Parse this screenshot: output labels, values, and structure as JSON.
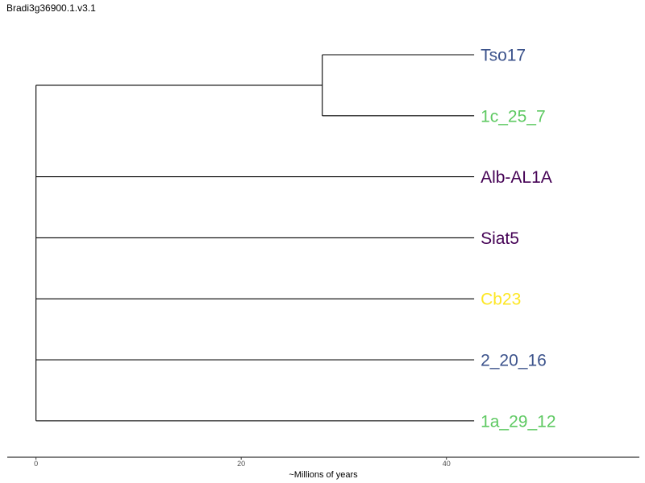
{
  "title": "Bradi3g36900.1.v3.1",
  "tree": {
    "leaves": [
      {
        "label": "Tso17",
        "color": "#3b528b"
      },
      {
        "label": "1c_25_7",
        "color": "#5ec962"
      },
      {
        "label": "Alb-AL1A",
        "color": "#440154"
      },
      {
        "label": "Siat5",
        "color": "#440154"
      },
      {
        "label": "Cb23",
        "color": "#fde725"
      },
      {
        "label": "2_20_16",
        "color": "#3b528b"
      },
      {
        "label": "1a_29_12",
        "color": "#5ec962"
      }
    ],
    "root_age": 0,
    "tip_age": 42.7,
    "internal_nodes": [
      {
        "name": "Tso17+1c_25_7",
        "age": 27.9,
        "children": [
          "Tso17",
          "1c_25_7"
        ]
      }
    ]
  },
  "axis": {
    "title": "~Millions of years",
    "ticks": [
      0,
      20,
      40
    ],
    "range": [
      -2.8,
      58.8
    ]
  },
  "colors": {
    "branch": "#000000",
    "axis": "#000000",
    "tick_text": "#4d4d4d"
  }
}
